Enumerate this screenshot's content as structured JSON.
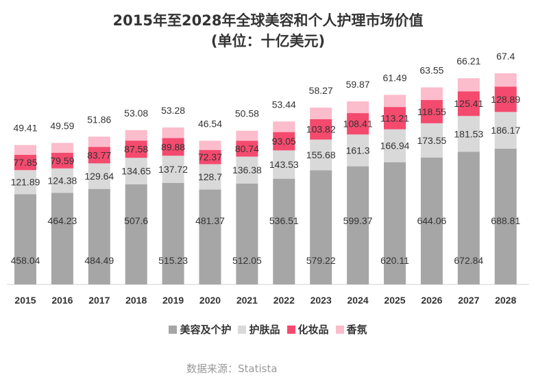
{
  "chart_data": {
    "type": "bar",
    "stacked": true,
    "title": "2015年至2028年全球美容和个人护理市场价值",
    "subtitle": "(单位：十亿美元)",
    "categories": [
      "2015",
      "2016",
      "2017",
      "2018",
      "2019",
      "2020",
      "2021",
      "2022",
      "2023",
      "2024",
      "2025",
      "2026",
      "2027",
      "2028"
    ],
    "series": [
      {
        "name": "美容及个护",
        "color": "#a6a6a6",
        "values": [
          458.04,
          464.23,
          484.49,
          507.6,
          515.23,
          481.37,
          512.05,
          536.51,
          579.22,
          599.37,
          620.11,
          644.06,
          672.84,
          688.81
        ]
      },
      {
        "name": "护肤品",
        "color": "#d9d9d9",
        "values": [
          121.89,
          124.38,
          129.64,
          134.65,
          137.72,
          128.7,
          136.38,
          143.53,
          155.68,
          161.3,
          166.94,
          173.55,
          181.53,
          186.17
        ]
      },
      {
        "name": "化妆品",
        "color": "#f44a6e",
        "values": [
          77.85,
          79.59,
          83.77,
          87.58,
          89.88,
          72.37,
          80.74,
          93.05,
          103.82,
          108.41,
          113.21,
          118.55,
          125.41,
          128.89
        ]
      },
      {
        "name": "香氛",
        "color": "#fbbccb",
        "values": [
          49.41,
          49.59,
          51.86,
          53.08,
          53.28,
          46.54,
          50.58,
          53.44,
          58.27,
          59.87,
          61.49,
          63.55,
          66.21,
          67.4
        ]
      }
    ],
    "legend_position": "bottom",
    "grid": false,
    "source": "数据来源：Statista"
  }
}
